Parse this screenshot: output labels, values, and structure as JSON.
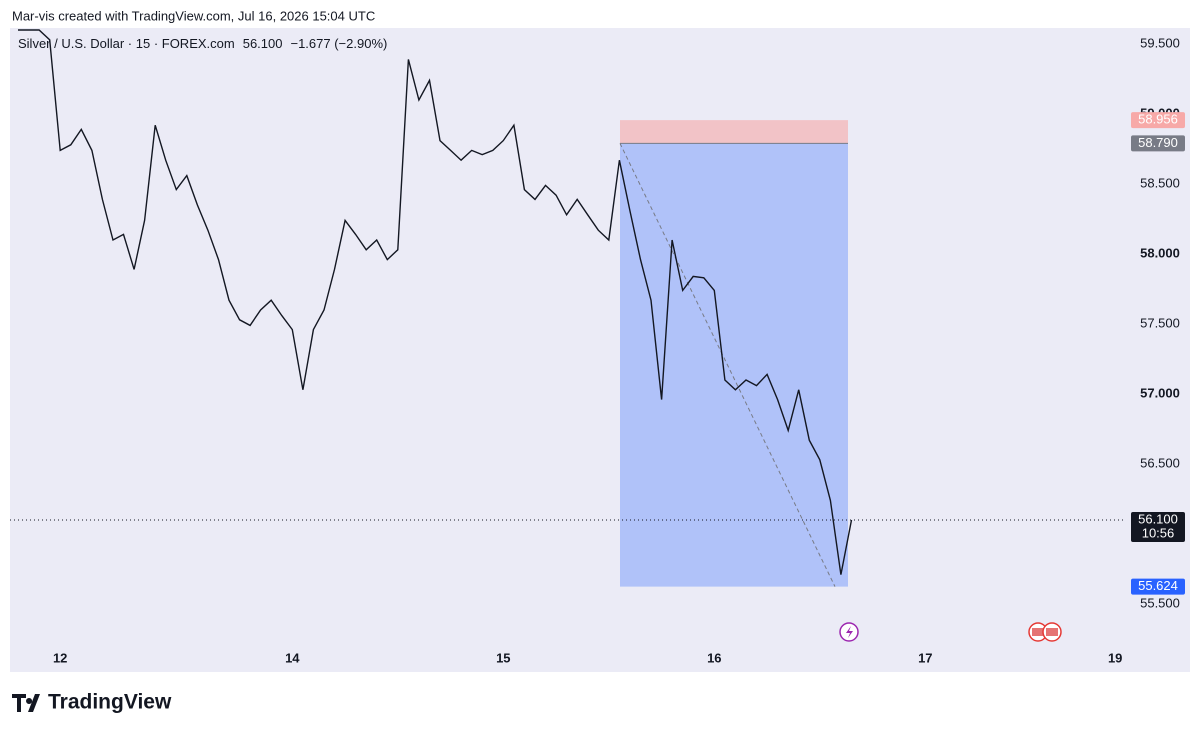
{
  "header": "Mar-vis created with TradingView.com, Jul 16, 2026 15:04 UTC",
  "brand": "TradingView",
  "chart_data": {
    "type": "line",
    "legend": {
      "symbol": "Silver / U.S. Dollar · 15 · FOREX.com",
      "last": "56.100",
      "change": "−1.677 (−2.90%)"
    },
    "color": "#131722",
    "categories": [
      null,
      null,
      null,
      null,
      "12",
      null,
      null,
      null,
      null,
      null,
      null,
      null,
      null,
      null,
      null,
      null,
      null,
      null,
      null,
      null,
      null,
      null,
      null,
      null,
      null,
      null,
      "14",
      null,
      null,
      null,
      null,
      null,
      null,
      null,
      null,
      null,
      null,
      null,
      null,
      null,
      null,
      null,
      null,
      null,
      null,
      null,
      "15",
      null,
      null,
      null,
      null,
      null,
      null,
      null,
      null,
      null,
      null,
      null,
      null,
      null,
      null,
      null,
      null,
      null,
      null,
      null,
      "16",
      null,
      null,
      null,
      null,
      null,
      null,
      null,
      null,
      null,
      null,
      null,
      null,
      null,
      null,
      null,
      null,
      null,
      null,
      null,
      "17",
      null,
      null,
      null,
      null,
      null,
      null,
      null,
      null,
      null,
      null,
      null,
      null,
      null,
      null,
      null,
      null,
      null,
      "19",
      null
    ],
    "values": [
      59.6,
      59.6,
      59.6,
      59.53,
      58.74,
      58.78,
      58.89,
      58.74,
      58.39,
      58.1,
      58.14,
      57.89,
      58.24,
      58.92,
      58.67,
      58.46,
      58.56,
      58.35,
      58.17,
      57.96,
      57.67,
      57.53,
      57.49,
      57.6,
      57.67,
      57.56,
      57.46,
      57.03,
      57.46,
      57.6,
      57.89,
      58.24,
      58.14,
      58.03,
      58.1,
      57.96,
      58.03,
      59.39,
      59.1,
      59.24,
      58.81,
      58.74,
      58.67,
      58.74,
      58.71,
      58.74,
      58.81,
      58.92,
      58.46,
      58.39,
      58.49,
      58.42,
      58.28,
      58.39,
      58.28,
      58.17,
      58.1,
      58.67,
      58.31,
      57.96,
      57.67,
      56.96,
      58.1,
      57.74,
      57.84,
      57.83,
      57.74,
      57.1,
      57.03,
      57.1,
      57.06,
      57.14,
      56.96,
      56.74,
      57.03,
      56.67,
      56.53,
      56.24,
      55.71,
      56.1,
      null,
      null,
      null,
      null,
      null,
      null,
      null,
      null,
      null,
      null,
      null,
      null,
      null,
      null,
      null,
      null,
      null,
      null,
      null,
      null,
      null,
      null,
      null,
      null,
      null,
      null
    ],
    "ylim": [
      55.207,
      59.614
    ],
    "yticks": [
      {
        "value": 55.5,
        "label": "55.500"
      },
      {
        "value": 56.5,
        "label": "56.500"
      },
      {
        "value": 57,
        "label": "57.000"
      },
      {
        "value": 57.5,
        "label": "57.500"
      },
      {
        "value": 58,
        "label": "58.000"
      },
      {
        "value": 58.5,
        "label": "58.500"
      },
      {
        "value": 59,
        "label": "59.000"
      },
      {
        "value": 59.5,
        "label": "59.500"
      }
    ],
    "position": {
      "stop": 58.956,
      "entry": 58.79,
      "target": 55.624,
      "stop_label": "58.956",
      "entry_label": "58.790",
      "target_label": "55.624",
      "stop_color": "#f7a9a8",
      "target_color": "#2962ff"
    },
    "last_price": {
      "value": 56.1,
      "label": "56.100",
      "countdown": "10:56"
    }
  }
}
